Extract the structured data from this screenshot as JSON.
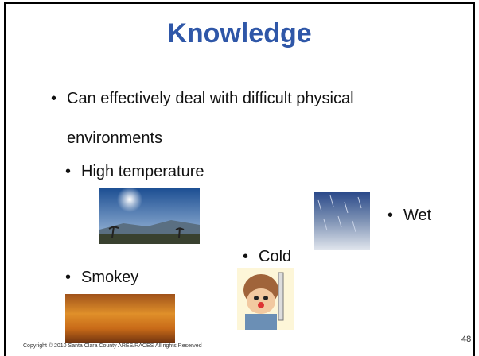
{
  "slide": {
    "title": "Knowledge",
    "bullets": [
      "Can effectively deal with difficult physical environments"
    ],
    "sub_bullets": [
      "High temperature",
      "Wet",
      "Cold",
      "Smokey"
    ],
    "footer": "Copyright © 2010 Santa Clara County ARES/RACES All rights Reserved",
    "page_number": 48
  }
}
